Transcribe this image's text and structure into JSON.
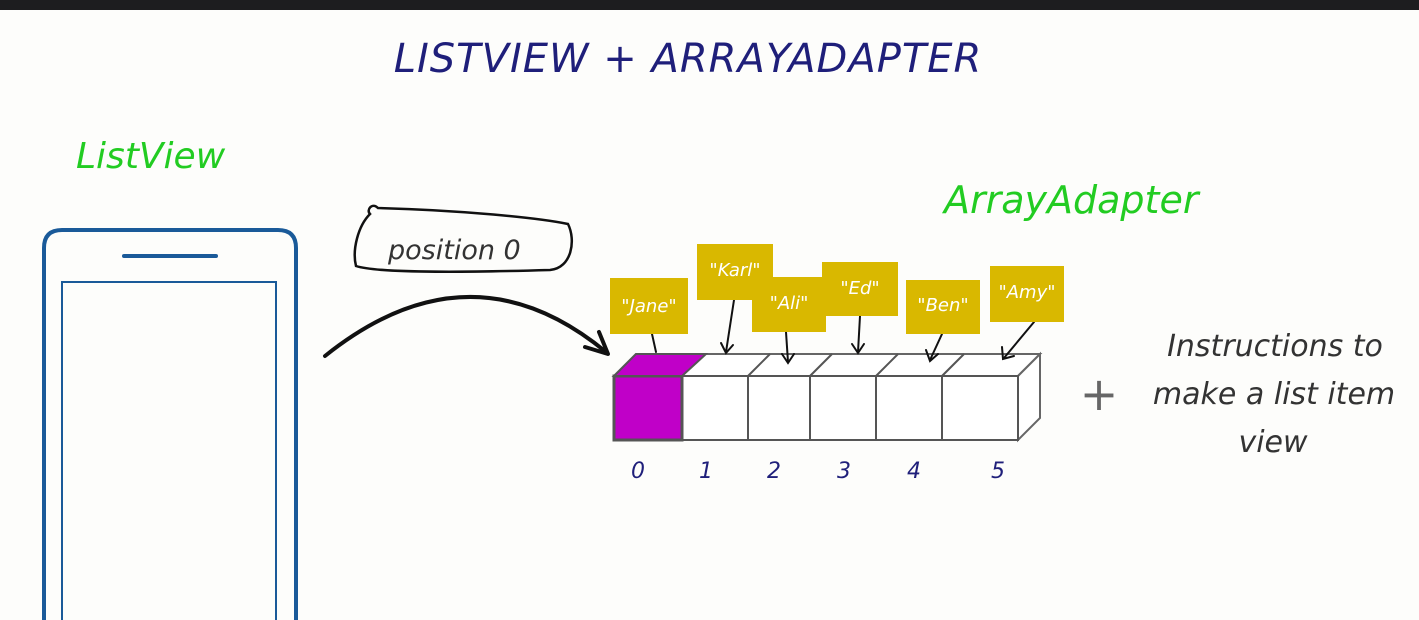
{
  "title": "LISTVIEW + ARRAYADAPTER",
  "listview_label": "ListView",
  "arrayadapter_label": "ArrayAdapter",
  "position_bubble": "position 0",
  "array": {
    "items": [
      {
        "index": "0",
        "name": "\"Jane\""
      },
      {
        "index": "1",
        "name": "\"Karl\""
      },
      {
        "index": "2",
        "name": "\"Ali\""
      },
      {
        "index": "3",
        "name": "\"Ed\""
      },
      {
        "index": "4",
        "name": "\"Ben\""
      },
      {
        "index": "5",
        "name": "\"Amy\""
      }
    ]
  },
  "plus_sign": "+",
  "instructions": {
    "line1": "Instructions to",
    "line2": "make a list item",
    "line3": "view"
  },
  "colors": {
    "title_blue": "#1f1f7a",
    "label_green": "#22cc22",
    "phone_blue": "#1a5a99",
    "magenta": "#c000c8",
    "tag_yellow": "#d9b800",
    "ink": "#222222"
  }
}
